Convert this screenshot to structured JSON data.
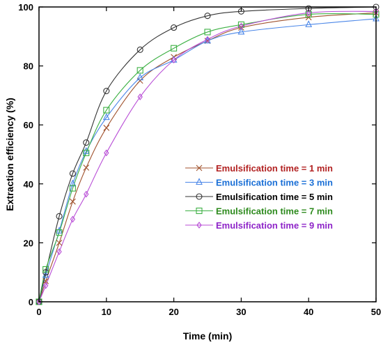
{
  "chart_data": {
    "type": "line",
    "title": "",
    "xlabel": "Time (min)",
    "ylabel": "Extraction efficiency (%)",
    "xlim": [
      0,
      50
    ],
    "ylim": [
      0,
      100
    ],
    "xticks": [
      0,
      10,
      20,
      30,
      40,
      50
    ],
    "yticks": [
      0,
      20,
      40,
      60,
      80,
      100
    ],
    "grid": false,
    "legend_position": "right-center",
    "x": [
      0,
      1,
      3,
      5,
      7,
      10,
      15,
      20,
      25,
      30,
      40,
      50
    ],
    "series": [
      {
        "name": "Emulsification time = 1 min",
        "color": "#a0522d",
        "text_color": "#b22222",
        "marker": "x",
        "values": [
          0,
          7,
          20,
          34,
          45.5,
          59,
          75,
          83,
          88.5,
          93,
          96.5,
          98
        ]
      },
      {
        "name": "Emulsification time = 3 min",
        "color": "#4a86e8",
        "text_color": "#1a6fd6",
        "marker": "triangle",
        "values": [
          0,
          9,
          24,
          40,
          51,
          62.5,
          76,
          82,
          88.5,
          91.5,
          94,
          96
        ]
      },
      {
        "name": "Emulsification time = 5 min",
        "color": "#333333",
        "text_color": "#000000",
        "marker": "circle",
        "values": [
          0,
          10,
          29,
          43.5,
          54,
          71.5,
          85.5,
          93,
          97,
          98.5,
          99.5,
          100
        ]
      },
      {
        "name": "Emulsification time = 7 min",
        "color": "#3cb043",
        "text_color": "#2e8b1e",
        "marker": "square",
        "values": [
          0,
          11,
          23.5,
          38.5,
          50.5,
          65,
          78.5,
          86,
          91.5,
          94,
          97.5,
          97.5
        ]
      },
      {
        "name": "Emulsification time = 9 min",
        "color": "#b84dd6",
        "text_color": "#8e24c8",
        "marker": "diamond",
        "values": [
          0,
          5.5,
          17,
          28,
          36.5,
          50.5,
          69.5,
          82,
          89,
          93.5,
          98,
          98.5
        ]
      }
    ]
  }
}
